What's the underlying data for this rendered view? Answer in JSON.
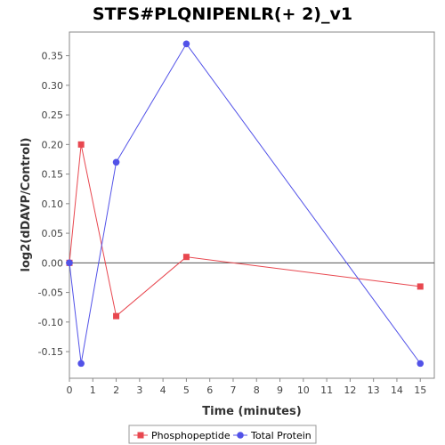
{
  "chart_data": {
    "type": "line",
    "title": "STFS#PLQNIPENLR(+ 2)_v1",
    "xlabel": "Time (minutes)",
    "ylabel": "log2(dDAVP/Control)",
    "xlim": [
      0,
      15.6
    ],
    "ylim": [
      -0.195,
      0.39
    ],
    "x_ticks": [
      0,
      1,
      2,
      3,
      4,
      5,
      6,
      7,
      8,
      9,
      10,
      11,
      12,
      13,
      14,
      15
    ],
    "x_tick_labels": [
      "0",
      "1",
      "2",
      "3",
      "4",
      "5",
      "6",
      "7",
      "8",
      "9",
      "10",
      "11",
      "12",
      "13",
      "14",
      "15"
    ],
    "y_ticks": [
      -0.15,
      -0.1,
      -0.05,
      0.0,
      0.05,
      0.1,
      0.15,
      0.2,
      0.25,
      0.3,
      0.35
    ],
    "y_tick_labels": [
      "-0.15",
      "-0.10",
      "-0.05",
      "0.00",
      "0.05",
      "0.10",
      "0.15",
      "0.20",
      "0.25",
      "0.30",
      "0.35"
    ],
    "grid": false,
    "zero_line": true,
    "legend_position": "bottom",
    "series": [
      {
        "name": "Phosphopeptide",
        "color": "#e8474f",
        "marker": "square",
        "x": [
          0,
          0.5,
          2,
          5,
          15
        ],
        "y": [
          0.0,
          0.2,
          -0.09,
          0.01,
          -0.04
        ]
      },
      {
        "name": "Total Protein",
        "color": "#5252e8",
        "marker": "circle",
        "x": [
          0,
          0.5,
          2,
          5,
          15
        ],
        "y": [
          0.0,
          -0.17,
          0.17,
          0.37,
          -0.17
        ]
      }
    ]
  }
}
